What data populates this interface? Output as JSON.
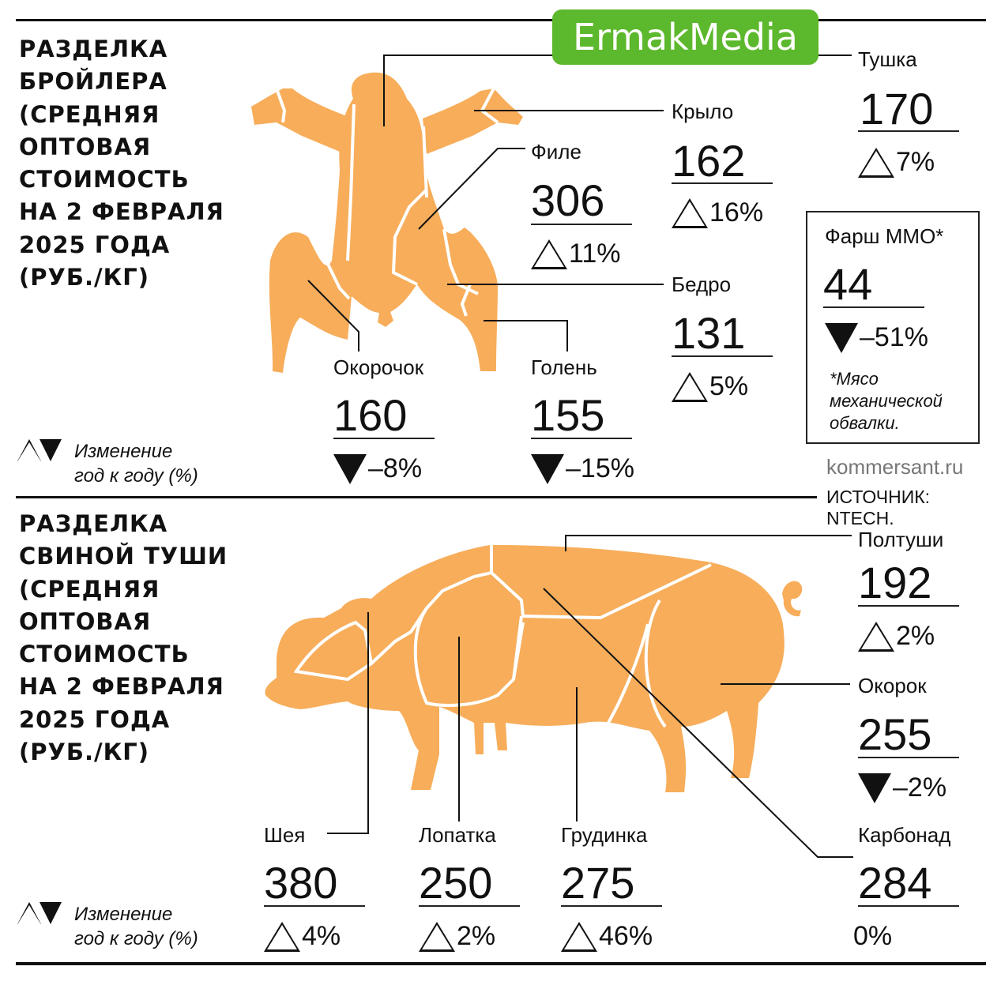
{
  "logo": {
    "text": "ErmakMedia",
    "color": "#5cb82c"
  },
  "colors": {
    "shape": "#f7ad5a",
    "line": "#111111"
  },
  "chicken": {
    "title": "РАЗДЕЛКА\nБРОЙЛЕРА\n(СРЕДНЯЯ\nОПТОВАЯ\nСТОИМОСТЬ\nНА 2 ФЕВРАЛЯ\n2025 ГОДА\n(РУБ./КГ)",
    "legend": "Изменение\nгод к году (%)",
    "items": [
      {
        "label": "Тушка",
        "price": "170",
        "change": "7%",
        "dir": "up"
      },
      {
        "label": "Крыло",
        "price": "162",
        "change": "16%",
        "dir": "up"
      },
      {
        "label": "Филе",
        "price": "306",
        "change": "11%",
        "dir": "up"
      },
      {
        "label": "Бедро",
        "price": "131",
        "change": "5%",
        "dir": "up"
      },
      {
        "label": "Окорочок",
        "price": "160",
        "change": "–8%",
        "dir": "down"
      },
      {
        "label": "Голень",
        "price": "155",
        "change": "–15%",
        "dir": "down"
      }
    ],
    "box": {
      "label": "Фарш ММО*",
      "price": "44",
      "change": "–51%",
      "dir": "down",
      "note": "*Мясо\nмеханической\nобвалки."
    }
  },
  "source": {
    "site": "kommersant.ru",
    "text": "ИСТОЧНИК: NTECH."
  },
  "pork": {
    "title": "РАЗДЕЛКА\nСВИНОЙ ТУШИ\n(СРЕДНЯЯ\nОПТОВАЯ\nСТОИМОСТЬ\nНА 2 ФЕВРАЛЯ\n2025 ГОДА\n(РУБ./КГ)",
    "legend": "Изменение\nгод к году (%)",
    "items": [
      {
        "label": "Полтуши",
        "price": "192",
        "change": "2%",
        "dir": "up"
      },
      {
        "label": "Окорок",
        "price": "255",
        "change": "–2%",
        "dir": "down"
      },
      {
        "label": "Шея",
        "price": "380",
        "change": "4%",
        "dir": "up"
      },
      {
        "label": "Лопатка",
        "price": "250",
        "change": "2%",
        "dir": "up"
      },
      {
        "label": "Грудинка",
        "price": "275",
        "change": "46%",
        "dir": "up"
      },
      {
        "label": "Карбонад",
        "price": "284",
        "change": "0%",
        "dir": "none"
      }
    ]
  },
  "chart_data": [
    {
      "type": "table",
      "title": "РАЗДЕЛКА БРОЙЛЕРА (СРЕДНЯЯ ОПТОВАЯ СТОИМОСТЬ НА 2 ФЕВРАЛЯ 2025 ГОДА (РУБ./КГ)",
      "categories": [
        "Тушка",
        "Крыло",
        "Филе",
        "Бедро",
        "Окорочок",
        "Голень",
        "Фарш ММО*"
      ],
      "values": [
        170,
        162,
        306,
        131,
        160,
        155,
        44
      ],
      "change_pct": [
        7,
        16,
        11,
        5,
        -8,
        -15,
        -51
      ]
    },
    {
      "type": "table",
      "title": "РАЗДЕЛКА СВИНОЙ ТУШИ (СРЕДНЯЯ ОПТОВАЯ СТОИМОСТЬ НА 2 ФЕВРАЛЯ 2025 ГОДА (РУБ./КГ)",
      "categories": [
        "Полтуши",
        "Окорок",
        "Шея",
        "Лопатка",
        "Грудинка",
        "Карбонад"
      ],
      "values": [
        192,
        255,
        380,
        250,
        275,
        284
      ],
      "change_pct": [
        2,
        -2,
        4,
        2,
        46,
        0
      ]
    }
  ]
}
